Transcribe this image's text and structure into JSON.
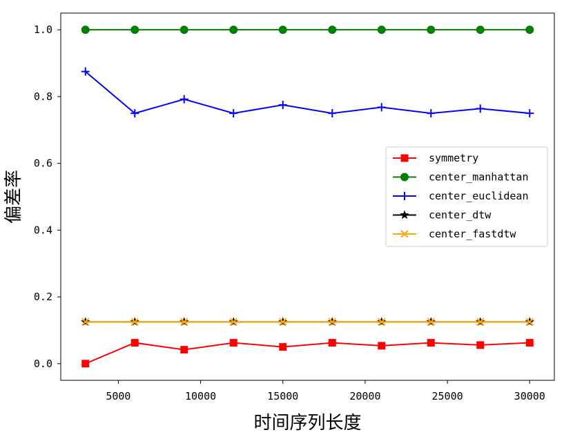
{
  "chart_data": {
    "type": "line",
    "xlabel": "时间序列长度",
    "ylabel": "偏差率",
    "x": [
      3000,
      6000,
      9000,
      12000,
      15000,
      18000,
      21000,
      24000,
      27000,
      30000
    ],
    "xlim": [
      1500,
      31500
    ],
    "ylim": [
      -0.05,
      1.05
    ],
    "x_ticks": [
      "5000",
      "10000",
      "15000",
      "20000",
      "25000",
      "30000"
    ],
    "y_ticks": [
      "0.0",
      "0.2",
      "0.4",
      "0.6",
      "0.8",
      "1.0"
    ],
    "grid": false,
    "legend_position": "center-right",
    "series": [
      {
        "name": "symmetry",
        "color": "#ff0000",
        "marker": "square",
        "values": [
          0.0,
          0.0625,
          0.0417,
          0.0625,
          0.05,
          0.0625,
          0.0536,
          0.0625,
          0.0556,
          0.0625
        ]
      },
      {
        "name": "center_manhattan",
        "color": "#008000",
        "marker": "circle",
        "values": [
          1.0,
          1.0,
          1.0,
          1.0,
          1.0,
          1.0,
          1.0,
          1.0,
          1.0,
          1.0
        ]
      },
      {
        "name": "center_euclidean",
        "color": "#0000ff",
        "marker": "plus",
        "values": [
          0.875,
          0.75,
          0.792,
          0.75,
          0.775,
          0.75,
          0.768,
          0.75,
          0.764,
          0.75
        ]
      },
      {
        "name": "center_dtw",
        "color": "#000000",
        "marker": "star",
        "values": [
          0.125,
          0.125,
          0.125,
          0.125,
          0.125,
          0.125,
          0.125,
          0.125,
          0.125,
          0.125
        ]
      },
      {
        "name": "center_fastdtw",
        "color": "#ffa500",
        "marker": "x",
        "values": [
          0.125,
          0.125,
          0.125,
          0.125,
          0.125,
          0.125,
          0.125,
          0.125,
          0.125,
          0.125
        ]
      }
    ]
  }
}
